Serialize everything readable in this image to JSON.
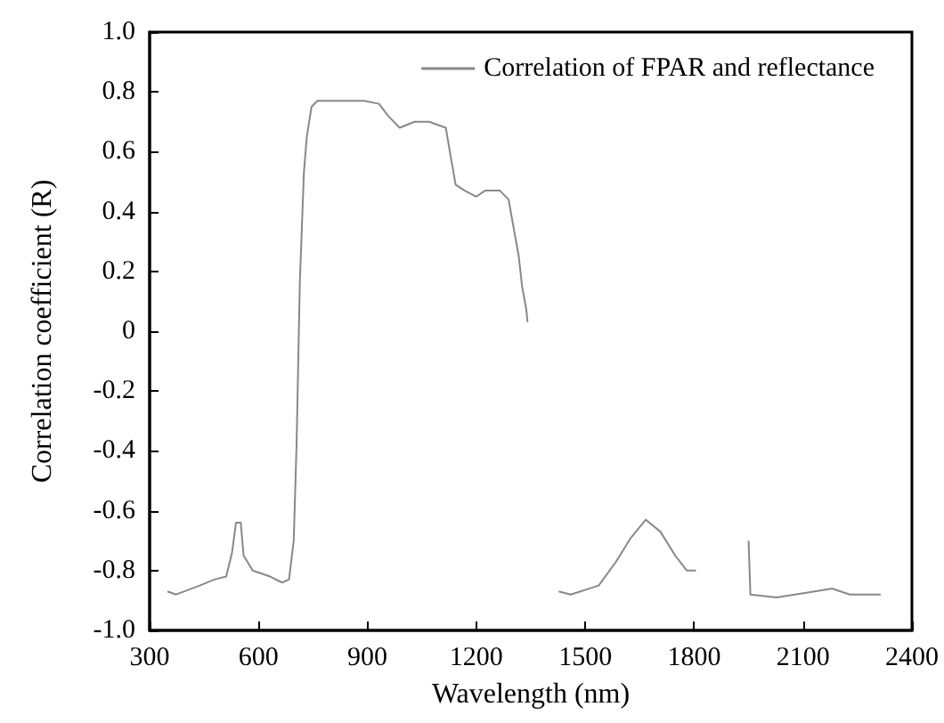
{
  "chart_data": {
    "type": "line",
    "xlabel": "Wavelength (nm)",
    "ylabel": "Correlation coefficient (R)",
    "xlim": [
      300,
      2400
    ],
    "xticks": [
      300,
      600,
      900,
      1200,
      1500,
      1800,
      2100,
      2400
    ],
    "ylim": [
      -1,
      1
    ],
    "yticks": [
      {
        "value": -1,
        "label": "-1.0"
      },
      {
        "value": -0.8,
        "label": "-0.8"
      },
      {
        "value": -0.6,
        "label": "-0.6"
      },
      {
        "value": -0.4,
        "label": "-0.4"
      },
      {
        "value": -0.2,
        "label": "-0.2"
      },
      0,
      {
        "value": 0.2,
        "label": "0.2"
      },
      {
        "value": 0.4,
        "label": "0.4"
      },
      {
        "value": 0.6,
        "label": "0.6"
      },
      {
        "value": 0.8,
        "label": "0.8"
      },
      {
        "value": 1,
        "label": "1.0"
      }
    ],
    "grid": false,
    "legend": "top right",
    "marker": "none",
    "line_style": "solid",
    "series": [
      {
        "name": "Correlation of FPAR and reflectance",
        "color": "#888888",
        "x": [
          349,
          373,
          438,
          478,
          511,
          527,
          538,
          551,
          559,
          584,
          632,
          665,
          684,
          697,
          705,
          714,
          725,
          733,
          746,
          762,
          892,
          932,
          957,
          989,
          1030,
          1070,
          1116,
          1127,
          1143,
          1168,
          1200,
          1224,
          1265,
          1289,
          1305,
          1317,
          1326,
          1338,
          1341,
          1380,
          1427,
          1460,
          1537,
          1585,
          1626,
          1667,
          1707,
          1748,
          1780,
          1805,
          1880,
          1950,
          1955,
          2027,
          2132,
          2180,
          2229,
          2314
        ],
        "values": [
          -0.87,
          -0.88,
          -0.85,
          -0.83,
          -0.82,
          -0.74,
          -0.64,
          -0.64,
          -0.75,
          -0.8,
          -0.82,
          -0.84,
          -0.83,
          -0.7,
          -0.37,
          0.17,
          0.53,
          0.65,
          0.75,
          0.77,
          0.77,
          0.76,
          0.72,
          0.68,
          0.7,
          0.7,
          0.68,
          0.6,
          0.49,
          0.47,
          0.45,
          0.47,
          0.47,
          0.44,
          0.33,
          0.25,
          0.15,
          0.07,
          0.03,
          null,
          -0.87,
          -0.88,
          -0.85,
          -0.77,
          -0.69,
          -0.63,
          -0.67,
          -0.75,
          -0.8,
          -0.8,
          null,
          -0.7,
          -0.88,
          -0.89,
          -0.87,
          -0.86,
          -0.88,
          -0.88
        ]
      }
    ]
  }
}
